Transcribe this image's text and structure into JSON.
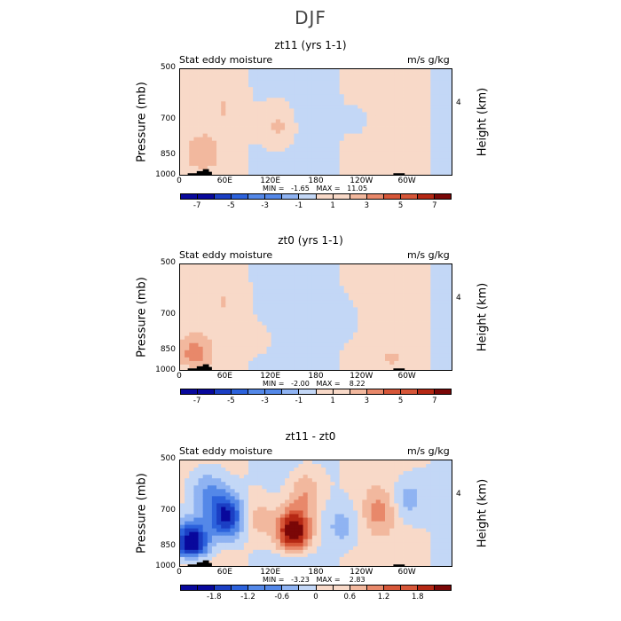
{
  "page_title": "DJF",
  "colors": {
    "palette_12": [
      "#08089c",
      "#1b3fc4",
      "#2c62dc",
      "#5488e8",
      "#8fb3f2",
      "#c3d7f6",
      "#f8d9c8",
      "#f2b89e",
      "#e8886a",
      "#d65638",
      "#b52814",
      "#7a0707"
    ],
    "palette_diff": [
      "#08089c",
      "#1b3fc4",
      "#2c62dc",
      "#5488e8",
      "#8fb3f2",
      "#c3d7f6",
      "#f8d9c8",
      "#f2b89e",
      "#e8886a",
      "#d65638",
      "#b52814",
      "#7a0707"
    ],
    "terrain": "#000000"
  },
  "panels": [
    {
      "title": "zt11 (yrs 1-1)",
      "variable": "Stat eddy moisture",
      "units": "m/s g/kg",
      "y_label": "Pressure (mb)",
      "y2_label": "Height (km)",
      "y_ticks": [
        "500",
        "700",
        "850",
        "1000"
      ],
      "y2_ticks": [
        "4"
      ],
      "x_ticks": [
        "0",
        "60E",
        "120E",
        "180",
        "120W",
        "60W"
      ],
      "min_max": "MIN =   -1.65   MAX =   11.05",
      "colorbar_labels": [
        "-7",
        "-5",
        "-3",
        "-1",
        "1",
        "3",
        "5",
        "7"
      ]
    },
    {
      "title": "zt0 (yrs 1-1)",
      "variable": "Stat eddy moisture",
      "units": "m/s g/kg",
      "y_label": "Pressure (mb)",
      "y2_label": "Height (km)",
      "y_ticks": [
        "500",
        "700",
        "850",
        "1000"
      ],
      "y2_ticks": [
        "4"
      ],
      "x_ticks": [
        "0",
        "60E",
        "120E",
        "180",
        "120W",
        "60W"
      ],
      "min_max": "MIN =   -2.00   MAX =    8.22",
      "colorbar_labels": [
        "-7",
        "-5",
        "-3",
        "-1",
        "1",
        "3",
        "5",
        "7"
      ]
    },
    {
      "title": "zt11 - zt0",
      "variable": "Stat eddy moisture",
      "units": "m/s g/kg",
      "y_label": "Pressure (mb)",
      "y2_label": "Height (km)",
      "y_ticks": [
        "500",
        "700",
        "850",
        "1000"
      ],
      "y2_ticks": [
        "4"
      ],
      "x_ticks": [
        "0",
        "60E",
        "120E",
        "180",
        "120W",
        "60W"
      ],
      "min_max": "MIN =   -3.23   MAX =    2.83",
      "colorbar_labels": [
        "-1.8",
        "-1.2",
        "-0.6",
        "0",
        "0.6",
        "1.2",
        "1.8"
      ]
    }
  ],
  "chart_data": [
    {
      "type": "heatmap",
      "title": "zt11 (yrs 1-1)",
      "xlabel": "",
      "ylabel": "Pressure (mb)",
      "x_range": [
        0,
        360
      ],
      "y_range": [
        1000,
        500
      ],
      "min": -1.65,
      "max": 11.05,
      "levels": [
        -8,
        -7,
        -6,
        -5,
        -4,
        -3,
        -2,
        -1,
        0,
        1,
        2,
        3,
        4,
        5,
        6,
        7,
        8
      ],
      "features": [
        {
          "lon": 130,
          "p": 720,
          "value": 2
        },
        {
          "lon": 30,
          "p": 850,
          "value": 2
        },
        {
          "lon": 60,
          "p": 650,
          "value": 1
        },
        {
          "lon": 175,
          "p": 650,
          "value": -0.5
        },
        {
          "lon": 240,
          "p": 700,
          "value": -0.5
        },
        {
          "lon": 285,
          "p": 700,
          "value": 0.5
        }
      ]
    },
    {
      "type": "heatmap",
      "title": "zt0 (yrs 1-1)",
      "xlabel": "",
      "ylabel": "Pressure (mb)",
      "x_range": [
        0,
        360
      ],
      "y_range": [
        1000,
        500
      ],
      "min": -2.0,
      "max": 8.22,
      "levels": [
        -8,
        -7,
        -6,
        -5,
        -4,
        -3,
        -2,
        -1,
        0,
        1,
        2,
        3,
        4,
        5,
        6,
        7,
        8
      ],
      "features": [
        {
          "lon": 20,
          "p": 870,
          "value": 3
        },
        {
          "lon": 60,
          "p": 650,
          "value": 1
        },
        {
          "lon": 110,
          "p": 800,
          "value": 0.5
        },
        {
          "lon": 150,
          "p": 750,
          "value": -0.5
        },
        {
          "lon": 220,
          "p": 720,
          "value": -0.5
        },
        {
          "lon": 280,
          "p": 900,
          "value": 1
        }
      ]
    },
    {
      "type": "heatmap",
      "title": "zt11 - zt0",
      "xlabel": "",
      "ylabel": "Pressure (mb)",
      "x_range": [
        0,
        360
      ],
      "y_range": [
        1000,
        500
      ],
      "min": -3.23,
      "max": 2.83,
      "levels": [
        -2.1,
        -1.8,
        -1.5,
        -1.2,
        -0.9,
        -0.6,
        -0.3,
        0,
        0.3,
        0.6,
        0.9,
        1.2,
        1.5,
        1.8,
        2.1
      ],
      "features": [
        {
          "lon": 15,
          "p": 830,
          "value": -2.4
        },
        {
          "lon": 60,
          "p": 720,
          "value": -2.0
        },
        {
          "lon": 35,
          "p": 620,
          "value": -0.8
        },
        {
          "lon": 105,
          "p": 730,
          "value": 0.6
        },
        {
          "lon": 150,
          "p": 780,
          "value": 2.4
        },
        {
          "lon": 165,
          "p": 620,
          "value": 0.8
        },
        {
          "lon": 215,
          "p": 760,
          "value": -0.5
        },
        {
          "lon": 262,
          "p": 700,
          "value": 0.7
        },
        {
          "lon": 300,
          "p": 650,
          "value": -0.6
        }
      ]
    }
  ]
}
